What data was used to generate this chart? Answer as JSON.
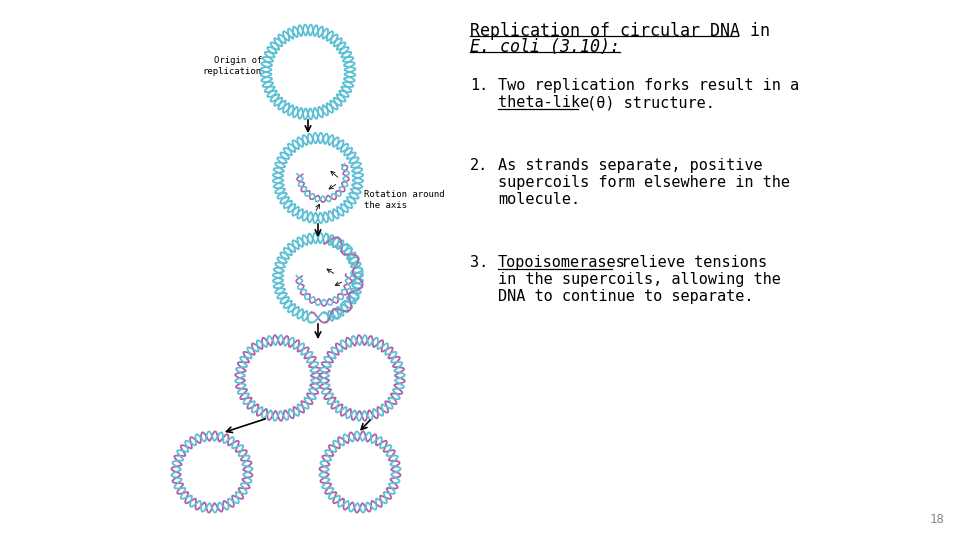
{
  "bg_color": "#ffffff",
  "text_color": "#000000",
  "page_num_color": "#888888",
  "cyan": "#5bbfd4",
  "pink": "#b060a8",
  "font_family": "monospace",
  "title_fs": 12,
  "body_fs": 11,
  "small_fs": 6.5,
  "page_num_fs": 9,
  "title_line1": "Replication of circular DNA in",
  "title_line2": "E. coli (3.10):",
  "item1_line1": "Two replication forks result in a",
  "item1_line2_ul": "theta-like",
  "item1_line2_rest": " (θ) structure.",
  "item2_line1": "As strands separate, positive",
  "item2_line2": "supercoils form elsewhere in the",
  "item2_line3": "molecule.",
  "item3_line1_ul": "Topoisomerases",
  "item3_line1_rest": " relieve tensions",
  "item3_line2": "in the supercoils, allowing the",
  "item3_line3": "DNA to continue to separate.",
  "label1": "Origin of\nreplication",
  "label2": "Rotation around\nthe axis",
  "page_number": "18"
}
